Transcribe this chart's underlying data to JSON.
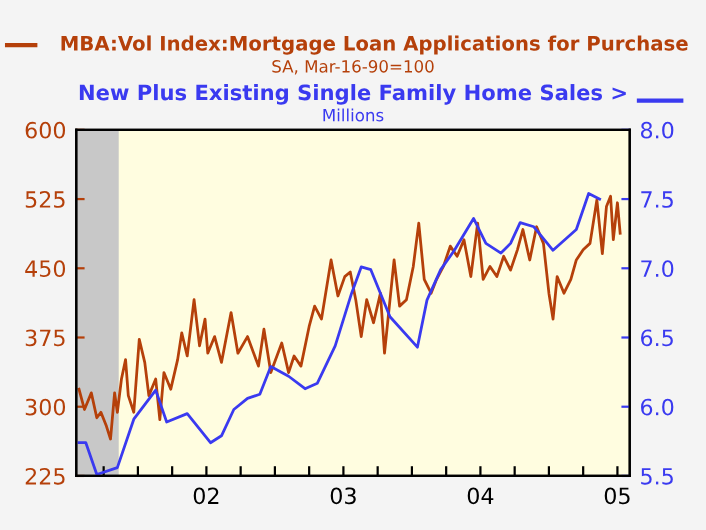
{
  "chart_data": {
    "type": "line",
    "subtitle": "SA, Mar-16-90=100",
    "annotations": [
      "Millions"
    ],
    "xlim": [
      2001.05,
      2005.09
    ],
    "xticks": [
      {
        "value": 2001.25,
        "label": null
      },
      {
        "value": 2001.5,
        "label": null
      },
      {
        "value": 2001.75,
        "label": null
      },
      {
        "value": 2002,
        "label": "02"
      },
      {
        "value": 2002.25,
        "label": null
      },
      {
        "value": 2002.5,
        "label": null
      },
      {
        "value": 2002.75,
        "label": null
      },
      {
        "value": 2003,
        "label": "03"
      },
      {
        "value": 2003.25,
        "label": null
      },
      {
        "value": 2003.5,
        "label": null
      },
      {
        "value": 2003.75,
        "label": null
      },
      {
        "value": 2004,
        "label": "04"
      },
      {
        "value": 2004.25,
        "label": null
      },
      {
        "value": 2004.5,
        "label": null
      },
      {
        "value": 2004.75,
        "label": null
      },
      {
        "value": 2005,
        "label": "05"
      }
    ],
    "ylim": [
      225,
      600
    ],
    "yticks": [
      225,
      300,
      375,
      450,
      525,
      600
    ],
    "y2lim": [
      5.5,
      8.0
    ],
    "y2ticks": [
      5.5,
      {
        "value": 6,
        "label": "6.0"
      },
      6.5,
      {
        "value": 7,
        "label": "7.0"
      },
      7.5,
      {
        "value": 8,
        "label": "8.0"
      }
    ],
    "bands": [
      {
        "axis": "x",
        "from": 2001.05,
        "to": 2001.36,
        "color": "#c8c8c8"
      }
    ],
    "grid": false,
    "series": [
      {
        "name": "MBA:Vol Index:Mortgage Loan Applications for Purchase",
        "color": "#b5400a",
        "x": [
          2001.07,
          2001.11,
          2001.16,
          2001.2,
          2001.23,
          2001.27,
          2001.3,
          2001.33,
          2001.35,
          2001.38,
          2001.41,
          2001.43,
          2001.47,
          2001.51,
          2001.55,
          2001.58,
          2001.63,
          2001.66,
          2001.69,
          2001.74,
          2001.79,
          2001.82,
          2001.86,
          2001.91,
          2001.95,
          2001.99,
          2002.01,
          2002.06,
          2002.11,
          2002.18,
          2002.23,
          2002.3,
          2002.38,
          2002.42,
          2002.47,
          2002.55,
          2002.6,
          2002.64,
          2002.69,
          2002.75,
          2002.79,
          2002.84,
          2002.91,
          2002.96,
          2003.01,
          2003.05,
          2003.09,
          2003.13,
          2003.17,
          2003.22,
          2003.27,
          2003.3,
          2003.37,
          2003.41,
          2003.46,
          2003.51,
          2003.55,
          2003.59,
          2003.64,
          2003.68,
          2003.73,
          2003.78,
          2003.83,
          2003.88,
          2003.93,
          2003.98,
          2004.02,
          2004.07,
          2004.12,
          2004.17,
          2004.22,
          2004.27,
          2004.31,
          2004.36,
          2004.41,
          2004.46,
          2004.5,
          2004.53,
          2004.56,
          2004.61,
          2004.66,
          2004.7,
          2004.75,
          2004.8,
          2004.85,
          2004.89,
          2004.92,
          2004.95,
          2004.97,
          2005.0,
          2005.02
        ],
        "values": [
          319,
          297,
          315,
          288,
          294,
          279,
          265,
          315,
          294,
          330,
          351,
          312,
          294,
          373,
          348,
          312,
          330,
          286,
          337,
          319,
          351,
          380,
          355,
          416,
          366,
          395,
          358,
          376,
          348,
          402,
          358,
          376,
          344,
          384,
          337,
          369,
          337,
          355,
          344,
          387,
          409,
          395,
          459,
          420,
          441,
          446,
          416,
          376,
          416,
          391,
          423,
          358,
          459,
          409,
          416,
          452,
          499,
          438,
          423,
          438,
          452,
          474,
          463,
          481,
          441,
          499,
          438,
          452,
          441,
          463,
          448,
          470,
          492,
          459,
          495,
          477,
          423,
          395,
          441,
          423,
          438,
          459,
          470,
          477,
          524,
          466,
          517,
          528,
          481,
          521,
          488
        ]
      },
      {
        "name": "New Plus Existing Single Family Home Sales >",
        "color": "#3a3af0",
        "axis": "y2",
        "x": [
          2001.07,
          2001.12,
          2001.2,
          2001.35,
          2001.47,
          2001.63,
          2001.71,
          2001.86,
          2002.03,
          2002.11,
          2002.2,
          2002.3,
          2002.39,
          2002.47,
          2002.6,
          2002.72,
          2002.81,
          2002.94,
          2003.06,
          2003.13,
          2003.2,
          2003.34,
          2003.54,
          2003.61,
          2003.71,
          2003.81,
          2003.95,
          2004.04,
          2004.15,
          2004.22,
          2004.29,
          2004.39,
          2004.53,
          2004.7,
          2004.79,
          2004.87
        ],
        "values": [
          5.74,
          5.74,
          5.51,
          5.56,
          5.91,
          6.12,
          5.89,
          5.95,
          5.74,
          5.79,
          5.98,
          6.06,
          6.09,
          6.29,
          6.22,
          6.13,
          6.17,
          6.44,
          6.82,
          7.01,
          6.99,
          6.65,
          6.43,
          6.77,
          6.99,
          7.13,
          7.36,
          7.18,
          7.11,
          7.18,
          7.33,
          7.3,
          7.13,
          7.28,
          7.54,
          7.5
        ]
      }
    ]
  }
}
